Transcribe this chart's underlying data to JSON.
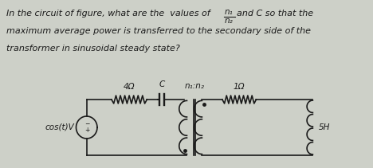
{
  "bg_color": "#cdd0c8",
  "text_color": "#1a1a1a",
  "circuit": {
    "r1_label": "4Ω",
    "c_label": "C",
    "transformer_label": "n₁:n₂",
    "r2_label": "1Ω",
    "l_label": "5H",
    "cos_label": "cos(t)V"
  },
  "text_line1a": "In the circuit of figure, what are the  values of ",
  "text_n1": "n₁",
  "text_n2": "n₂",
  "text_line1b": " and C so that the",
  "text_line2": "maximum average power is transferred to the secondary side of the",
  "text_line3": "transformer in sinusoidal steady state?"
}
